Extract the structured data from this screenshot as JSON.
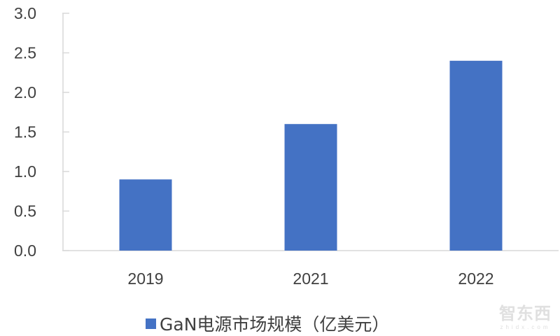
{
  "chart_data": {
    "type": "bar",
    "categories": [
      "2019",
      "2021",
      "2022"
    ],
    "series": [
      {
        "name": "GaN电源市场规模（亿美元）",
        "values": [
          0.9,
          1.6,
          2.4
        ],
        "color": "#4472C4"
      }
    ],
    "title": "",
    "xlabel": "",
    "ylabel": "",
    "ylim": [
      0,
      3.0
    ],
    "yticks": [
      "0.0",
      "0.5",
      "1.0",
      "1.5",
      "2.0",
      "2.5",
      "3.0"
    ],
    "grid": false,
    "legend_position": "bottom"
  },
  "watermark": {
    "text": "智东西",
    "subtext": "zhidx.com"
  }
}
